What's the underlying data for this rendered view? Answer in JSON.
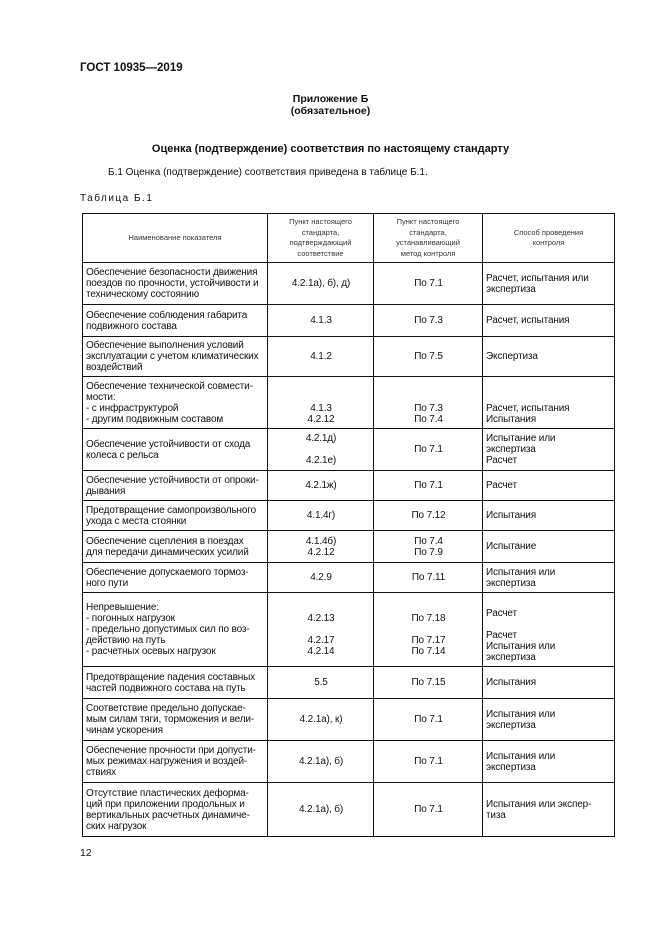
{
  "header": {
    "standard": "ГОСТ 10935—2019"
  },
  "appendix": {
    "title": "Приложение Б",
    "subtitle": "(обязательное)"
  },
  "section_title": "Оценка (подтверждение) соответствия по настоящему стандарту",
  "intro": "Б.1 Оценка (подтверждение) соответствия приведена в таблице Б.1.",
  "table_caption": "Таблица Б.1",
  "table": {
    "columns": [
      "Наименование показателя",
      "Пункт настоящего\nстандарта,\nподтверждающий\nсоответствие",
      "Пункт настоящего\nстандарта,\nустанавливающий\nметод контроля",
      "Способ проведения\nконтроля"
    ],
    "rows": [
      [
        "Обеспечение безопасности движения\nпоездов по прочности, устойчивости и\nтехническому состоянию",
        "4.2.1а), б), д)",
        "По 7.1",
        "Расчет, испытания или\nэкспертиза"
      ],
      [
        "Обеспечение соблюдения габарита\nподвижного состава",
        "4.1.3",
        "По 7.3",
        "Расчет, испытания"
      ],
      [
        "Обеспечение выполнения условий\nэксплуатации с учетом климатических\nвоздействий",
        "4.1.2",
        "По 7.5",
        "Экспертиза"
      ],
      [
        "Обеспечение технической совмести-\nмости:\n- с инфраструктурой\n- другим подвижным составом",
        "\n\n4.1.3\n4.2.12",
        "\n\nПо 7.3\nПо 7.4",
        "\n\nРасчет, испытания\nИспытания"
      ],
      [
        "Обеспечение устойчивости от схода\nколеса с рельса",
        "4.2.1д)\n\n4.2.1е)",
        "По 7.1",
        "Испытание или\nэкспертиза\nРасчет"
      ],
      [
        "Обеспечение устойчивости от опроки-\nдывания",
        "4.2.1ж)",
        "По 7.1",
        "Расчет"
      ],
      [
        "Предотвращение самопроизвольного\nухода с места стоянки",
        "4.1.4г)",
        "По 7.12",
        "Испытания"
      ],
      [
        "Обеспечение сцепления в поездах\nдля передачи динамических усилий",
        "4.1.4б)\n4.2.12",
        "По 7.4\nПо 7.9",
        "Испытание"
      ],
      [
        "Обеспечение допускаемого тормоз-\nного пути",
        "4.2.9",
        "По 7.11",
        "Испытания или\nэкспертиза"
      ],
      [
        "Непревышение:\n- погонных нагрузок\n- предельно допустимых сил по воз-\nдействию на путь\n- расчетных осевых нагрузок\n ",
        "\n4.2.13\n\n4.2.17\n4.2.14\n ",
        "\nПо 7.18\n\nПо 7.17\nПо 7.14\n ",
        "\nРасчет\n\nРасчет\nИспытания или\nэкспертиза"
      ],
      [
        "Предотвращение падения составных\nчастей подвижного состава на путь",
        "5.5",
        "По 7.15",
        "Испытания"
      ],
      [
        "Соответствие предельно допускае-\nмым силам тяги, торможения и вели-\nчинам ускорения",
        "4.2.1а), к)",
        "По 7.1",
        "Испытания или\nэкспертиза"
      ],
      [
        "Обеспечение прочности при допусти-\nмых режимах нагружения и воздей-\nствиях",
        "4.2.1а), б)",
        "По 7.1",
        "Испытания или\nэкспертиза"
      ],
      [
        "Отсутствие пластических деформа-\nций при приложении продольных и\nвертикальных расчетных динамиче-\nских нагрузок",
        "4.2.1а), б)",
        "По 7.1",
        "Испытания или экспер-\nтиза"
      ]
    ]
  },
  "page_number": "12"
}
